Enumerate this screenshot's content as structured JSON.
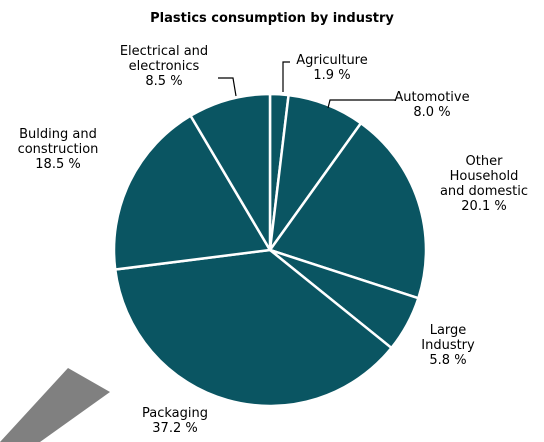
{
  "chart_data": {
    "type": "pie",
    "title": "Plastics consumption by industry",
    "slices": [
      {
        "label_lines": [
          "Agriculture"
        ],
        "value_text": "1.9 %",
        "value": 1.9
      },
      {
        "label_lines": [
          "Automotive"
        ],
        "value_text": "8.0 %",
        "value": 8.0
      },
      {
        "label_lines": [
          "Other",
          "Household",
          "and domestic"
        ],
        "value_text": "20.1 %",
        "value": 20.1
      },
      {
        "label_lines": [
          "Large",
          "Industry"
        ],
        "value_text": "5.8 %",
        "value": 5.8
      },
      {
        "label_lines": [
          "Packaging"
        ],
        "value_text": "37.2 %",
        "value": 37.2
      },
      {
        "label_lines": [
          "Bulding and",
          "construction"
        ],
        "value_text": "18.5 %",
        "value": 18.5
      },
      {
        "label_lines": [
          "Electrical and",
          "electronics"
        ],
        "value_text": "8.5 %",
        "value": 8.5
      }
    ],
    "colors": {
      "slice_fill": "#0a5562",
      "slice_border": "#ffffff",
      "arrow": "#808080"
    }
  }
}
